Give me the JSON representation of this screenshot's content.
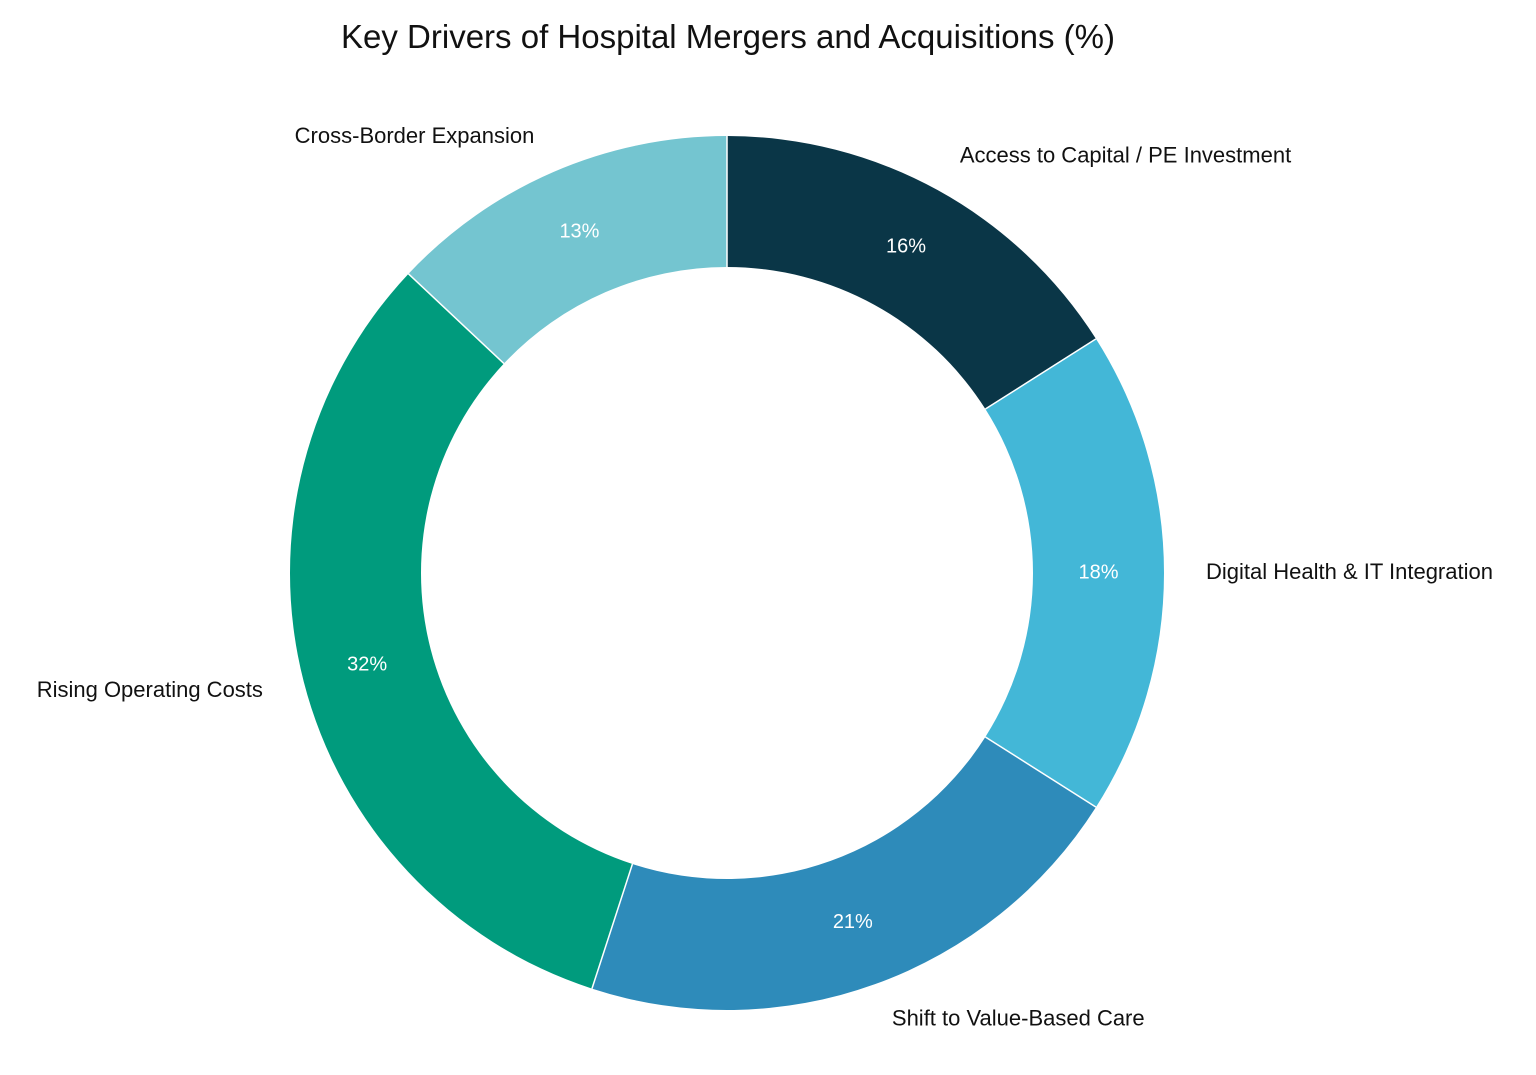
{
  "chart_data": {
    "type": "pie",
    "title": "Key Drivers of Hospital Mergers and Acquisitions (%)",
    "donut": true,
    "start": "top, clockwise",
    "slices": [
      {
        "label": "Access to Capital / PE Investment",
        "value": 16,
        "value_label": "16%",
        "color": "#0a3647"
      },
      {
        "label": "Digital Health & IT Integration",
        "value": 18,
        "value_label": "18%",
        "color": "#43b7d7"
      },
      {
        "label": "Shift to Value-Based Care",
        "value": 21,
        "value_label": "21%",
        "color": "#2e8bba"
      },
      {
        "label": "Rising Operating Costs",
        "value": 32,
        "value_label": "32%",
        "color": "#009b7d"
      },
      {
        "label": "Cross-Border Expansion",
        "value": 13,
        "value_label": "13%",
        "color": "#74c5d0"
      }
    ]
  }
}
